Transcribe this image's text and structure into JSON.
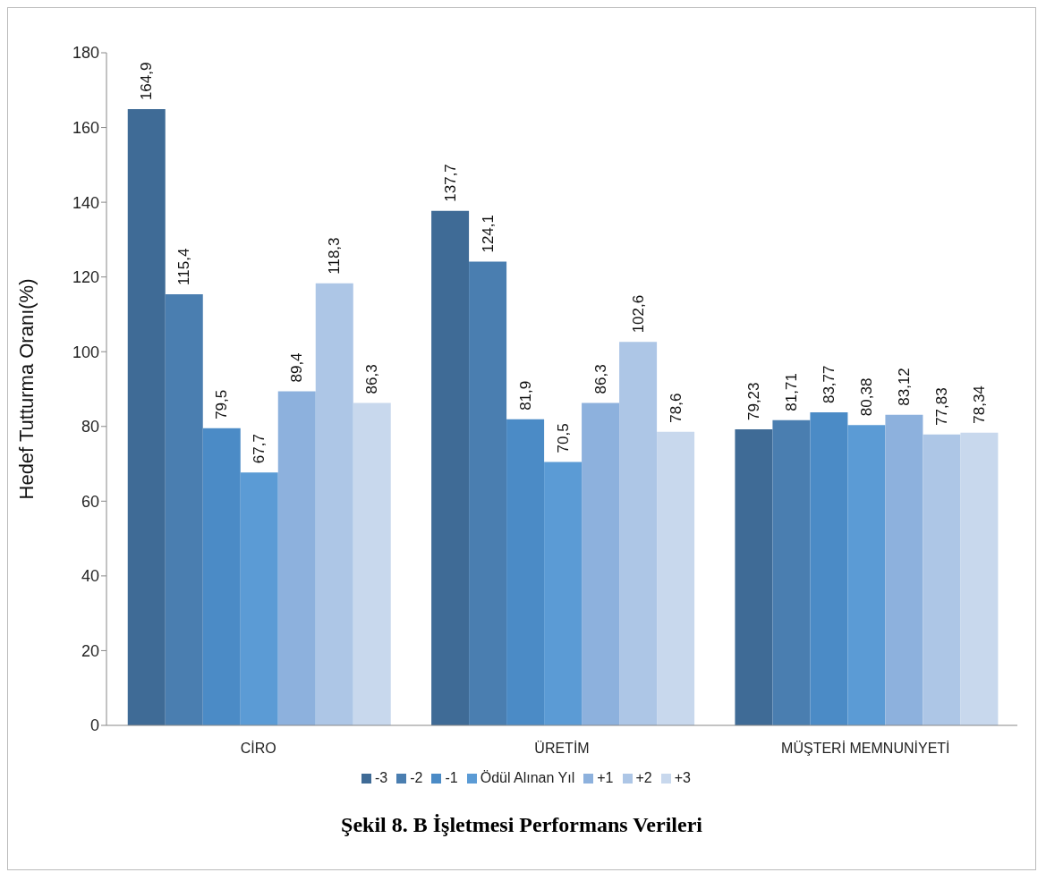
{
  "chart_data": {
    "type": "bar",
    "title": "Şekil 8. B İşletmesi Performans Verileri",
    "ylabel": "Hedef Tutturma Oranı(%)",
    "categories": [
      "CİRO",
      "ÜRETİM",
      "MÜŞTERİ MEMNUNİYETİ"
    ],
    "series": [
      {
        "name": "-3",
        "color": "#3f6b96",
        "values": [
          164.9,
          137.7,
          79.23
        ],
        "value_labels": [
          "164,9",
          "137,7",
          "79,23"
        ]
      },
      {
        "name": "-2",
        "color": "#4a7eb0",
        "values": [
          115.4,
          124.1,
          81.71
        ],
        "value_labels": [
          "115,4",
          "124,1",
          "81,71"
        ]
      },
      {
        "name": "-1",
        "color": "#4b8bc6",
        "values": [
          79.5,
          81.9,
          83.77
        ],
        "value_labels": [
          "79,5",
          "81,9",
          "83,77"
        ]
      },
      {
        "name": "Ödül Alınan Yıl",
        "color": "#5b9bd5",
        "values": [
          67.7,
          70.5,
          80.38
        ],
        "value_labels": [
          "67,7",
          "70,5",
          "80,38"
        ]
      },
      {
        "name": "+1",
        "color": "#8db1dd",
        "values": [
          89.4,
          86.3,
          83.12
        ],
        "value_labels": [
          "89,4",
          "86,3",
          "83,12"
        ]
      },
      {
        "name": "+2",
        "color": "#adc6e6",
        "values": [
          118.3,
          102.6,
          77.83
        ],
        "value_labels": [
          "118,3",
          "102,6",
          "77,83"
        ]
      },
      {
        "name": "+3",
        "color": "#c8d8ed",
        "values": [
          86.3,
          78.6,
          78.34
        ],
        "value_labels": [
          "86,3",
          "78,6",
          "78,34"
        ]
      }
    ],
    "ylim": [
      0,
      180
    ],
    "yticks": [
      0,
      20,
      40,
      60,
      80,
      100,
      120,
      140,
      160,
      180
    ],
    "grid": false,
    "legend": "bottom"
  }
}
